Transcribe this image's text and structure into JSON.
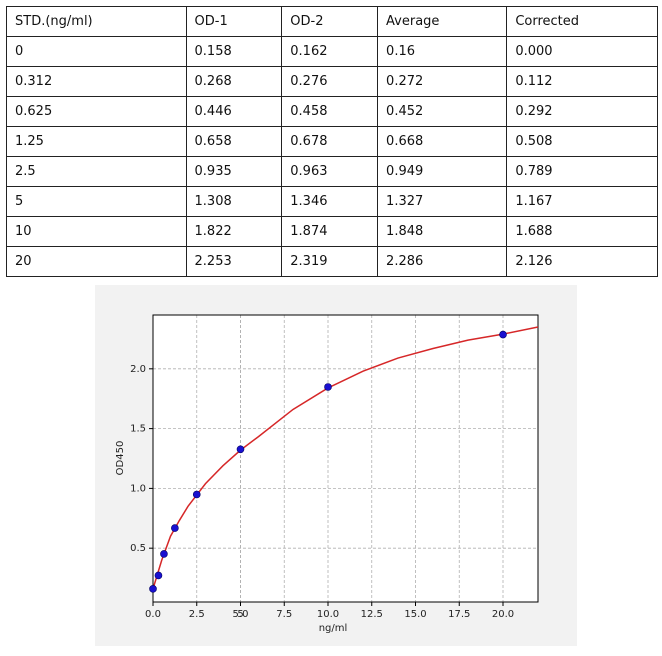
{
  "table": {
    "header": [
      "STD.(ng/ml)",
      "OD-1",
      "OD-2",
      "Average",
      "Corrected"
    ],
    "rows": [
      [
        "0",
        "0.158",
        "0.162",
        "0.16",
        "0.000"
      ],
      [
        "0.312",
        "0.268",
        "0.276",
        "0.272",
        "0.112"
      ],
      [
        "0.625",
        "0.446",
        "0.458",
        "0.452",
        "0.292"
      ],
      [
        "1.25",
        "0.658",
        "0.678",
        "0.668",
        "0.508"
      ],
      [
        "2.5",
        "0.935",
        "0.963",
        "0.949",
        "0.789"
      ],
      [
        "5",
        "1.308",
        "1.346",
        "1.327",
        "1.167"
      ],
      [
        "10",
        "1.822",
        "1.874",
        "1.848",
        "1.688"
      ],
      [
        "20",
        "2.253",
        "2.319",
        "2.286",
        "2.126"
      ]
    ]
  },
  "chart_data": {
    "type": "scatter",
    "x_label": "ng/ml",
    "y_label": "OD450",
    "xlim": [
      0,
      22
    ],
    "ylim": [
      0.05,
      2.45
    ],
    "grid": true,
    "xticks": [
      {
        "value": 0,
        "label": "0.0"
      },
      2.5,
      5,
      {
        "value": 5,
        "label": "5.0"
      },
      7.5,
      {
        "value": 10,
        "label": "10.0"
      },
      12.5,
      {
        "value": 15,
        "label": "15.0"
      },
      17.5,
      {
        "value": 20,
        "label": "20.0"
      }
    ],
    "yticks": [
      0.5,
      {
        "value": 1,
        "label": "1.0"
      },
      1.5,
      {
        "value": 2,
        "label": "2.0"
      }
    ],
    "series": [
      {
        "type": "line",
        "color": "#d62728",
        "x": [
          0,
          0.5,
          1,
          1.5,
          2,
          3,
          4,
          5,
          6,
          8,
          10,
          12,
          14,
          16,
          18,
          20,
          22
        ],
        "values": [
          0.16,
          0.4,
          0.6,
          0.73,
          0.85,
          1.04,
          1.19,
          1.32,
          1.43,
          1.66,
          1.84,
          1.98,
          2.09,
          2.17,
          2.24,
          2.29,
          2.35
        ]
      },
      {
        "type": "scatter",
        "color": "#1a10d0",
        "x": [
          0,
          0.312,
          0.625,
          1.25,
          2.5,
          5,
          10,
          20
        ],
        "values": [
          0.16,
          0.272,
          0.452,
          0.668,
          0.949,
          1.327,
          1.848,
          2.286
        ]
      }
    ]
  }
}
